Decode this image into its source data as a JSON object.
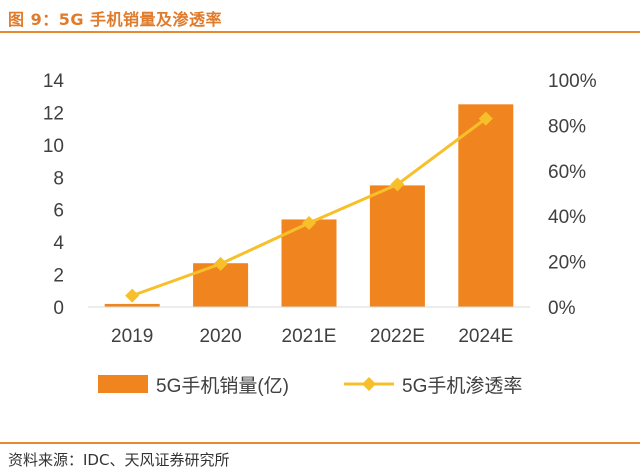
{
  "figure": {
    "title": "图 9：5G 手机销量及渗透率",
    "source": "资料来源：IDC、天风证券研究所"
  },
  "colors": {
    "bar": "#f0851f",
    "line": "#f7c02b",
    "rule": "#e8892f",
    "axis_text": "#404040"
  },
  "chart_data": {
    "type": "bar",
    "categories": [
      "2019",
      "2020",
      "2021E",
      "2022E",
      "2024E"
    ],
    "series": [
      {
        "name": "5G手机销量(亿)",
        "type": "bar",
        "axis": "left",
        "values": [
          0.19,
          2.7,
          5.4,
          7.5,
          12.5
        ]
      },
      {
        "name": "5G手机渗透率",
        "type": "line",
        "axis": "right",
        "marker": "diamond",
        "values": [
          5,
          19,
          37,
          54,
          83
        ]
      }
    ],
    "y_left": {
      "ylim": [
        0,
        14
      ],
      "ticks": [
        0,
        2,
        4,
        6,
        8,
        10,
        12,
        14
      ],
      "tick_labels": [
        "0",
        "2",
        "4",
        "6",
        "8",
        "10",
        "12",
        "14"
      ]
    },
    "y_right": {
      "ylim": [
        0,
        100
      ],
      "ticks": [
        0,
        20,
        40,
        60,
        80,
        100
      ],
      "tick_labels": [
        "0%",
        "20%",
        "40%",
        "60%",
        "80%",
        "100%"
      ]
    },
    "grid": false,
    "legend": "bottom"
  }
}
